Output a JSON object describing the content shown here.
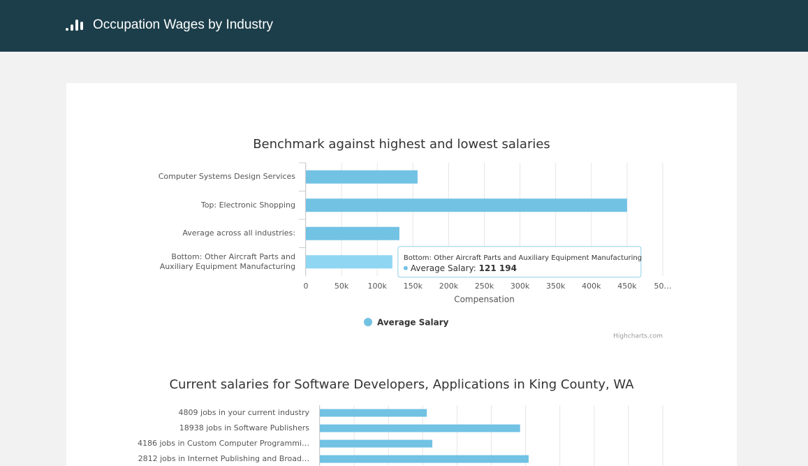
{
  "header": {
    "title": "Occupation Wages by Industry"
  },
  "chart_data": [
    {
      "type": "bar",
      "orientation": "horizontal",
      "title": "Benchmark against highest and lowest salaries",
      "categories": [
        "Computer Systems Design Services",
        "Top: Electronic Shopping",
        "Average across all industries:",
        "Bottom: Other Aircraft Parts and Auxiliary Equipment Manufacturing"
      ],
      "series": [
        {
          "name": "Average Salary",
          "color": "#72c2e4",
          "values": [
            156500,
            450000,
            131000,
            121194
          ],
          "value_labels": [
            null,
            null,
            null,
            "121 194"
          ]
        }
      ],
      "xlim": [
        0,
        500000
      ],
      "xticks": [
        0,
        {
          "value": 50000,
          "label": "50k"
        },
        {
          "value": 100000,
          "label": "100k"
        },
        {
          "value": 150000,
          "label": "150k"
        },
        {
          "value": 200000,
          "label": "200k"
        },
        {
          "value": 250000,
          "label": "250k"
        },
        {
          "value": 300000,
          "label": "300k"
        },
        {
          "value": 350000,
          "label": "350k"
        },
        {
          "value": 400000,
          "label": "400k"
        },
        {
          "value": 450000,
          "label": "450k"
        },
        {
          "value": 500000,
          "label": "50…"
        }
      ],
      "x_label": "Compensation",
      "grid": true,
      "legend": "bottom",
      "credit": "Highcharts.com",
      "tooltip": {
        "index": 3,
        "highlight_color": "#8fd6f2",
        "series_label": "Average Salary:"
      }
    },
    {
      "type": "bar",
      "orientation": "horizontal",
      "title": "Current salaries for Software Developers, Applications in King County, WA",
      "categories": [
        "4809 jobs in your current industry",
        "18938 jobs in Software Publishers",
        "4186 jobs in Custom Computer Programmi…",
        "2812 jobs in Internet Publishing and Broad…"
      ],
      "series": [
        {
          "color": "#72c2e4",
          "values": [
            156000,
            292000,
            164000,
            304500
          ]
        }
      ],
      "xlim": [
        0,
        500000
      ],
      "xticks": [
        0,
        50000,
        100000,
        150000,
        200000,
        250000,
        300000,
        350000,
        400000,
        450000,
        500000
      ],
      "grid": true
    }
  ]
}
